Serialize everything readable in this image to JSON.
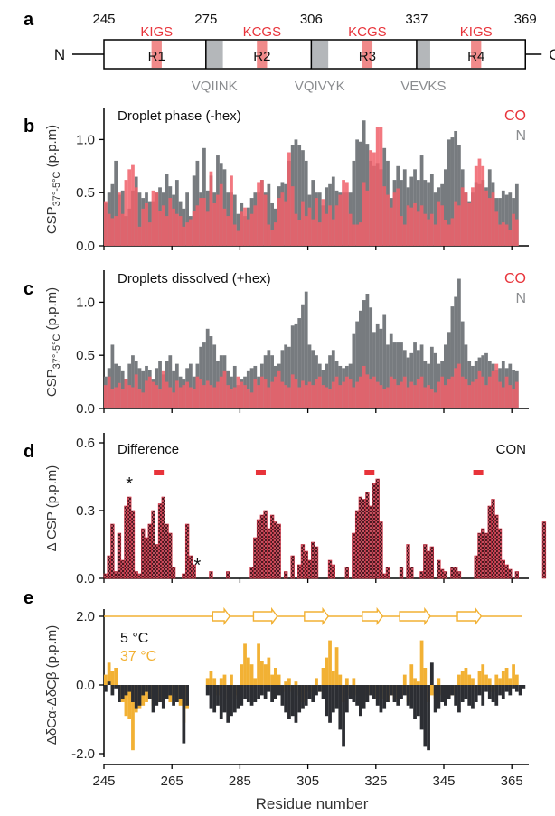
{
  "figure": {
    "panel_letters": [
      "a",
      "b",
      "c",
      "d",
      "e"
    ],
    "x_axis_label": "Residue number",
    "x_ticks": [
      245,
      265,
      285,
      305,
      325,
      345,
      365
    ]
  },
  "domain_map": {
    "start": 245,
    "end": 369,
    "boundary_labels": [
      "245",
      "275",
      "306",
      "337",
      "369"
    ],
    "boundaries": [
      245,
      275,
      306,
      337,
      369
    ],
    "n_label": "N",
    "c_label": "C",
    "repeats": [
      {
        "label": "R1",
        "motif": "KIGS",
        "motif_start": 259,
        "motif_end": 262
      },
      {
        "label": "R2",
        "motif": "KCGS",
        "motif_start": 290,
        "motif_end": 293
      },
      {
        "label": "R3",
        "motif": "KCGS",
        "motif_start": 321,
        "motif_end": 324
      },
      {
        "label": "R4",
        "motif": "KIGS",
        "motif_start": 353,
        "motif_end": 356
      }
    ],
    "hexapeptides": [
      {
        "label": "VQIINK",
        "start": 275,
        "end": 280
      },
      {
        "label": "VQIVYK",
        "start": 306,
        "end": 311
      },
      {
        "label": "VEVKS",
        "start": 337,
        "end": 341
      }
    ],
    "colors": {
      "motif": "#f08a8a",
      "motif_text": "#e8333a",
      "hexapeptide": "#b4b7ba",
      "hexapeptide_text": "#8a8c8f"
    }
  },
  "chart_data": [
    {
      "panel": "b",
      "type": "bar",
      "title": "Droplet phase (-hex)",
      "ylabel": "CSP37°-5°C (p.p.m)",
      "ylabel_main": "CSP",
      "ylabel_sub": "37°-5°C",
      "ylabel_unit": "(p.p.m)",
      "yticks": [
        "0.0",
        "0.5",
        "1.0"
      ],
      "ylim": [
        0,
        1.25
      ],
      "x_start": 245,
      "series": [
        {
          "name": "CO",
          "color": "#f0606a",
          "values": [
            0.42,
            0.3,
            0.26,
            0.28,
            0.5,
            0.3,
            0.62,
            0.72,
            0.76,
            0.55,
            0.18,
            0.35,
            0.4,
            0.22,
            0.52,
            0.5,
            0.33,
            0.38,
            0.28,
            0.45,
            0.35,
            0.3,
            0.28,
            0.18,
            0.22,
            0.25,
            0.33,
            0.38,
            0.45,
            0.45,
            0.32,
            0.7,
            0.4,
            0.48,
            0.58,
            0.35,
            0.28,
            0.66,
            0.2,
            0.14,
            0.32,
            0.36,
            0.25,
            0.3,
            0.38,
            0.6,
            0.62,
            0.48,
            0.2,
            0.15,
            0.22,
            0.45,
            0.5,
            0.42,
            0.88,
            0.56,
            0.3,
            0.24,
            0.42,
            0.28,
            0.36,
            0.25,
            0.45,
            0.22,
            0.44,
            0.3,
            0.38,
            0.25,
            0.38,
            0.48,
            0.62,
            0.6,
            0.3,
            0.2,
            0.2,
            0.22,
            0.6,
            0.52,
            0.9,
            0.88,
            1.12,
            1.12,
            0.56,
            0.48,
            0.36,
            0.5,
            0.54,
            0.28,
            0.2,
            0.38,
            0.36,
            0.4,
            0.32,
            0.38,
            0.3,
            0.25,
            0.3,
            0.2,
            0.42,
            0.38,
            0.24,
            0.2,
            0.26,
            0.42,
            0.38,
            0.55,
            0.5,
            0.4,
            0.55,
            0.75,
            0.82,
            0.75,
            0.52,
            0.45,
            0.5,
            0.32,
            0.2,
            0.22,
            0.2,
            0.15,
            0.3,
            0.25
          ]
        },
        {
          "name": "N",
          "color": "#707478",
          "values": [
            0.4,
            0.5,
            0.58,
            0.8,
            0.48,
            0.52,
            0.28,
            0.35,
            0.52,
            0.65,
            0.5,
            0.45,
            0.5,
            0.42,
            0.42,
            0.5,
            0.55,
            0.5,
            0.68,
            0.56,
            0.48,
            0.62,
            0.42,
            0.35,
            0.5,
            0.28,
            0.66,
            0.8,
            0.5,
            0.92,
            0.52,
            0.66,
            0.5,
            0.85,
            0.78,
            0.72,
            0.5,
            0.5,
            0.48,
            0.3,
            0.4,
            0.28,
            0.36,
            0.45,
            0.5,
            0.5,
            0.62,
            0.5,
            0.58,
            0.4,
            0.35,
            0.56,
            0.6,
            0.58,
            0.8,
            0.95,
            1.0,
            0.95,
            0.9,
            0.8,
            0.48,
            0.62,
            0.5,
            0.5,
            0.38,
            0.55,
            0.58,
            0.65,
            0.52,
            0.5,
            0.5,
            0.5,
            0.5,
            0.8,
            1.0,
            0.98,
            1.18,
            0.96,
            0.8,
            0.75,
            0.78,
            0.72,
            0.92,
            0.8,
            0.45,
            0.62,
            0.75,
            0.62,
            0.72,
            0.55,
            0.65,
            0.72,
            0.62,
            0.85,
            0.62,
            0.6,
            0.68,
            0.5,
            0.55,
            0.58,
            0.72,
            1.0,
            1.02,
            1.08,
            0.95,
            0.72,
            0.5,
            0.42,
            0.5,
            0.6,
            0.58,
            0.62,
            0.55,
            0.72,
            0.6,
            0.45,
            0.45,
            0.52,
            0.48,
            0.5,
            0.45,
            0.58
          ]
        }
      ]
    },
    {
      "panel": "c",
      "type": "bar",
      "title": "Droplets dissolved (+hex)",
      "ylabel": "CSP37°-5°C (p.p.m)",
      "ylabel_main": "CSP",
      "ylabel_sub": "37°-5°C",
      "ylabel_unit": "(p.p.m)",
      "yticks": [
        "0.0",
        "0.5",
        "1.0"
      ],
      "ylim": [
        0,
        1.25
      ],
      "x_start": 245,
      "series": [
        {
          "name": "CO",
          "color": "#f0606a",
          "values": [
            0.22,
            0.3,
            0.18,
            0.2,
            0.24,
            0.18,
            0.28,
            0.22,
            0.2,
            0.32,
            0.18,
            0.15,
            0.26,
            0.3,
            0.25,
            0.22,
            0.18,
            0.35,
            0.25,
            0.2,
            0.15,
            0.26,
            0.2,
            0.22,
            0.25,
            0.2,
            0.18,
            0.3,
            0.28,
            0.22,
            0.26,
            0.22,
            0.2,
            0.25,
            0.3,
            0.35,
            0.22,
            0.18,
            0.2,
            0.3,
            0.25,
            0.22,
            0.18,
            0.15,
            0.28,
            0.22,
            0.3,
            0.28,
            0.2,
            0.25,
            0.3,
            0.35,
            0.25,
            0.22,
            0.2,
            0.32,
            0.28,
            0.2,
            0.26,
            0.22,
            0.25,
            0.22,
            0.28,
            0.3,
            0.22,
            0.2,
            0.18,
            0.25,
            0.3,
            0.22,
            0.25,
            0.3,
            0.28,
            0.2,
            0.25,
            0.3,
            0.4,
            0.32,
            0.28,
            0.3,
            0.25,
            0.22,
            0.18,
            0.2,
            0.3,
            0.28,
            0.22,
            0.25,
            0.3,
            0.2,
            0.25,
            0.22,
            0.28,
            0.3,
            0.2,
            0.22,
            0.18,
            0.15,
            0.25,
            0.3,
            0.22,
            0.28,
            0.3,
            0.38,
            0.42,
            0.3,
            0.28,
            0.22,
            0.25,
            0.28,
            0.35,
            0.3,
            0.22,
            0.3,
            0.35,
            0.42,
            0.25,
            0.2,
            0.3,
            0.22,
            0.18,
            0.25
          ]
        },
        {
          "name": "N",
          "color": "#707478",
          "values": [
            0.3,
            0.38,
            0.6,
            0.42,
            0.4,
            0.35,
            0.28,
            0.42,
            0.5,
            0.45,
            0.38,
            0.35,
            0.4,
            0.36,
            0.28,
            0.38,
            0.45,
            0.32,
            0.45,
            0.5,
            0.35,
            0.42,
            0.3,
            0.28,
            0.38,
            0.42,
            0.3,
            0.42,
            0.58,
            0.62,
            0.75,
            0.68,
            0.6,
            0.45,
            0.5,
            0.5,
            0.35,
            0.3,
            0.4,
            0.22,
            0.28,
            0.3,
            0.35,
            0.38,
            0.4,
            0.3,
            0.42,
            0.5,
            0.55,
            0.5,
            0.4,
            0.42,
            0.55,
            0.6,
            0.58,
            0.78,
            0.8,
            0.85,
            0.98,
            1.1,
            0.6,
            0.55,
            0.5,
            0.42,
            0.36,
            0.42,
            0.5,
            0.55,
            0.45,
            0.4,
            0.38,
            0.4,
            0.42,
            0.7,
            0.82,
            0.92,
            1.02,
            1.08,
            0.95,
            0.72,
            0.8,
            0.75,
            0.88,
            0.6,
            0.7,
            0.62,
            0.62,
            0.62,
            0.55,
            0.48,
            0.52,
            0.62,
            0.55,
            0.6,
            0.45,
            0.42,
            0.58,
            0.52,
            0.42,
            0.45,
            0.6,
            0.72,
            0.96,
            1.05,
            1.22,
            0.82,
            0.6,
            0.45,
            0.4,
            0.45,
            0.48,
            0.5,
            0.52,
            0.45,
            0.42,
            0.36,
            0.38,
            0.45,
            0.38,
            0.42,
            0.36,
            0.35
          ]
        }
      ]
    },
    {
      "panel": "d",
      "type": "bar",
      "title": "Difference",
      "legend": "CON",
      "ylabel": "Δ CSP (p.p.m)",
      "yticks": [
        "0.0",
        "0.3",
        "0.6"
      ],
      "ylim": [
        0,
        0.62
      ],
      "x_start": 245,
      "markers": [
        "*",
        "*"
      ],
      "marker_residues": [
        252,
        272
      ],
      "dash_centers": [
        261,
        291,
        323,
        355
      ],
      "series": [
        {
          "name": "CON",
          "color": "#c8283a",
          "values": [
            0.02,
            0.1,
            0.24,
            0.03,
            0.2,
            0.08,
            0.32,
            0.36,
            0.3,
            0.03,
            0.02,
            0.22,
            0.18,
            0.24,
            0.3,
            0.15,
            0.33,
            0.36,
            0.24,
            0.2,
            0.05,
            0.0,
            0.0,
            0.02,
            0.24,
            0.1,
            0.06,
            0.0,
            0.0,
            0.0,
            0.0,
            0.03,
            0.0,
            0.0,
            0.0,
            0.0,
            0.03,
            0.0,
            0.0,
            0.0,
            0.0,
            0.0,
            0.0,
            0.05,
            0.18,
            0.26,
            0.28,
            0.3,
            0.22,
            0.28,
            0.25,
            0.24,
            0.0,
            0.03,
            0.0,
            0.1,
            0.0,
            0.06,
            0.15,
            0.12,
            0.08,
            0.16,
            0.14,
            0.0,
            0.0,
            0.0,
            0.08,
            0.06,
            0.0,
            0.0,
            0.0,
            0.05,
            0.0,
            0.2,
            0.3,
            0.36,
            0.35,
            0.38,
            0.32,
            0.42,
            0.44,
            0.25,
            0.02,
            0.05,
            0.0,
            0.0,
            0.0,
            0.05,
            0.0,
            0.15,
            0.05,
            0.0,
            0.0,
            0.03,
            0.15,
            0.12,
            0.14,
            0.0,
            0.08,
            0.04,
            0.03,
            0.0,
            0.05,
            0.05,
            0.03,
            0.0,
            0.0,
            0.0,
            0.0,
            0.1,
            0.2,
            0.22,
            0.2,
            0.32,
            0.35,
            0.28,
            0.22,
            0.08,
            0.06,
            0.04,
            0.0,
            0.03,
            0.0,
            0.0,
            0.0,
            0.0,
            0.0,
            0.0,
            0.0,
            0.25
          ]
        }
      ]
    },
    {
      "panel": "e",
      "type": "bar",
      "ylabel": "ΔδCα-ΔδCβ (p.p.m)",
      "yticks": [
        "2.0",
        "0.0",
        "-2.0"
      ],
      "ylim": [
        -2.0,
        2.0
      ],
      "x_start": 245,
      "secondary_structure": {
        "strands": [
          [
            277,
            282
          ],
          [
            289,
            296
          ],
          [
            304,
            311
          ],
          [
            321,
            327
          ],
          [
            332,
            341
          ],
          [
            349,
            356
          ]
        ]
      },
      "series": [
        {
          "name": "5 °C",
          "color": "#2c2e33",
          "values": [
            -0.2,
            0.1,
            -0.3,
            -0.1,
            -0.5,
            -0.4,
            -0.3,
            -0.2,
            -0.5,
            -0.7,
            -0.6,
            -0.3,
            -0.2,
            -0.4,
            -0.8,
            -0.6,
            -0.5,
            -0.7,
            -0.4,
            -0.3,
            -0.6,
            -0.5,
            -0.4,
            -1.7,
            -0.6,
            0.0,
            0.0,
            0.0,
            0.0,
            0.0,
            -0.3,
            -0.7,
            -0.8,
            -0.6,
            -1.0,
            -0.8,
            -1.1,
            -0.9,
            -0.8,
            -0.7,
            -0.6,
            -0.4,
            -0.5,
            -0.6,
            -0.5,
            -0.4,
            -0.3,
            -0.4,
            -0.2,
            -0.5,
            -0.4,
            -0.3,
            -0.6,
            -0.8,
            -1.0,
            -0.9,
            -1.1,
            -0.8,
            -0.7,
            -0.6,
            -0.4,
            -0.5,
            -0.3,
            -0.2,
            -0.4,
            -0.9,
            -1.1,
            -0.8,
            -0.7,
            -1.3,
            -1.8,
            -0.8,
            -0.4,
            -0.5,
            -0.6,
            -0.9,
            -0.7,
            -0.5,
            -0.3,
            -0.4,
            -0.6,
            -0.8,
            -0.7,
            -0.5,
            -0.3,
            -0.5,
            -0.6,
            -0.4,
            -0.3,
            -0.6,
            -0.7,
            -1.0,
            -0.9,
            -1.3,
            -1.8,
            -1.9,
            0.65,
            -0.8,
            -0.7,
            -0.5,
            -0.6,
            -0.4,
            -0.3,
            -0.6,
            -0.8,
            -0.5,
            -0.4,
            -0.6,
            -0.7,
            -0.5,
            -0.3,
            -0.6,
            -0.2,
            -0.4,
            -0.5,
            -0.6,
            -0.3,
            -0.4,
            -0.2,
            -0.3,
            -0.1,
            -0.2,
            -0.3,
            -0.1
          ]
        },
        {
          "name": "37 °C",
          "color": "#f2b134",
          "values": [
            0.3,
            0.65,
            0.4,
            0.5,
            -0.3,
            -0.5,
            -0.9,
            -1.0,
            -1.9,
            -0.8,
            -0.7,
            -0.6,
            -0.5,
            -0.4,
            -0.6,
            -0.3,
            -0.5,
            -0.4,
            -0.2,
            -0.5,
            -0.3,
            -0.4,
            -0.6,
            -1.1,
            -0.7,
            0.0,
            0.0,
            0.0,
            0.0,
            0.0,
            0.2,
            0.4,
            0.2,
            -0.3,
            0.2,
            0.3,
            -0.4,
            0.3,
            -0.4,
            -0.3,
            0.6,
            1.2,
            0.8,
            0.6,
            0.2,
            1.2,
            0.7,
            0.6,
            0.8,
            0.3,
            0.5,
            0.3,
            -0.2,
            0.1,
            0.2,
            -0.2,
            0.1,
            -0.3,
            -0.5,
            -0.4,
            -0.2,
            -0.3,
            0.2,
            -0.2,
            0.5,
            0.8,
            1.3,
            0.4,
            1.1,
            0.3,
            -0.5,
            0.2,
            -0.3,
            0.2,
            -0.3,
            -0.5,
            -0.4,
            -0.3,
            -0.2,
            -0.4,
            -0.3,
            -0.4,
            -0.2,
            -0.5,
            -0.3,
            -0.4,
            -0.2,
            -0.3,
            0.3,
            -0.5,
            0.6,
            0.2,
            0.1,
            1.3,
            0.5,
            -0.5,
            -0.3,
            -0.4,
            0.2,
            -0.3,
            -0.2,
            -0.4,
            -0.3,
            -0.2,
            0.3,
            0.4,
            0.5,
            0.3,
            0.2,
            -0.2,
            0.4,
            0.6,
            0.3,
            0.2,
            -0.2,
            0.3,
            0.2,
            0.4,
            0.5,
            0.2,
            0.6,
            0.3
          ]
        }
      ]
    }
  ]
}
